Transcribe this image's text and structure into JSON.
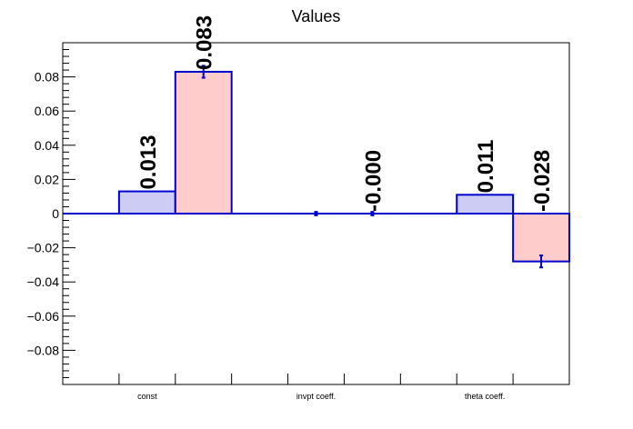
{
  "chart_data": {
    "type": "bar",
    "title": "Values",
    "xlabel": "",
    "ylabel": "",
    "categories": [
      "const",
      "invpt coeff.",
      "theta coeff."
    ],
    "ylim": [
      -0.1,
      0.1
    ],
    "yticks": [
      "0.08",
      "0.06",
      "0.04",
      "0.02",
      "0",
      "−0.02",
      "−0.04",
      "−0.06",
      "−0.08"
    ],
    "ytick_values": [
      0.08,
      0.06,
      0.04,
      0.02,
      0,
      -0.02,
      -0.04,
      -0.06,
      -0.08
    ],
    "grid": false,
    "legend": "none",
    "series": [
      {
        "fill": "#ccccf5",
        "stroke": "#0000cc",
        "values": [
          0.013,
          0.0,
          0.011
        ],
        "errors": [
          0.0,
          0.001,
          0.0
        ],
        "labels": [
          "0.013",
          "",
          "0.011"
        ]
      },
      {
        "fill": "#ffcccc",
        "stroke": "#0000cc",
        "values": [
          0.083,
          0.0,
          -0.028
        ],
        "errors": [
          0.0035,
          0.001,
          0.0035
        ],
        "labels": [
          "0.083",
          "-0.000",
          "-0.028"
        ]
      }
    ]
  }
}
